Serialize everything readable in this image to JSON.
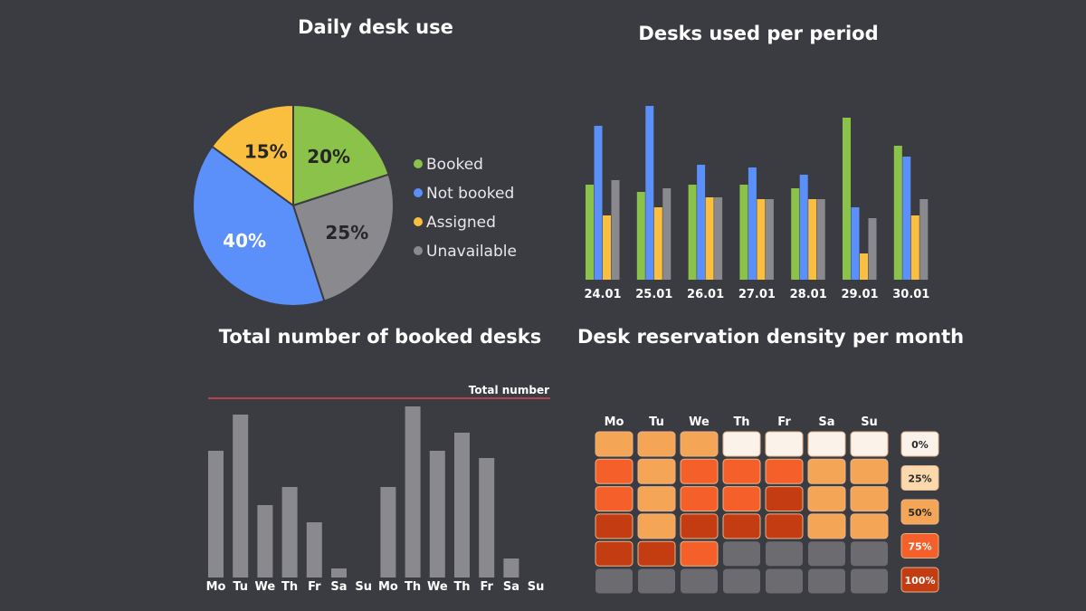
{
  "charts": {
    "pie": {
      "title": "Daily desk use",
      "slices": [
        {
          "name": "Booked",
          "value": 20,
          "label": "20%",
          "color": "#8bc34a"
        },
        {
          "name": "Unavailable",
          "value": 25,
          "label": "25%",
          "color": "#8a8a8e"
        },
        {
          "name": "Not booked",
          "value": 40,
          "label": "40%",
          "color": "#5b8ff9"
        },
        {
          "name": "Assigned",
          "value": 15,
          "label": "15%",
          "color": "#fbbf3f"
        }
      ],
      "legend": [
        {
          "name": "Booked",
          "color": "#8bc34a"
        },
        {
          "name": "Not booked",
          "color": "#5b8ff9"
        },
        {
          "name": "Assigned",
          "color": "#fbbf3f"
        },
        {
          "name": "Unavailable",
          "color": "#8a8a8e"
        }
      ]
    },
    "period": {
      "title": "Desks used per period"
    },
    "total": {
      "title": "Total number of booked desks",
      "reference_label": "Total number"
    },
    "density": {
      "title": "Desk reservation density per month"
    }
  },
  "chart_data": [
    {
      "type": "pie",
      "title": "Daily desk use",
      "categories": [
        "Booked",
        "Unavailable",
        "Not booked",
        "Assigned"
      ],
      "values": [
        20,
        25,
        40,
        15
      ],
      "legend_placement": "right"
    },
    {
      "type": "bar",
      "title": "Desks used per period",
      "categories": [
        "24.01",
        "25.01",
        "26.01",
        "27.01",
        "28.01",
        "29.01",
        "30.01"
      ],
      "series": [
        {
          "color": "#8bc34a",
          "values": [
            105,
            97,
            105,
            105,
            101,
            179,
            148
          ]
        },
        {
          "color": "#5b8ff9",
          "values": [
            170,
            192,
            127,
            124,
            116,
            80,
            136
          ]
        },
        {
          "color": "#fbbf3f",
          "values": [
            71,
            80,
            91,
            89,
            89,
            29,
            71
          ]
        },
        {
          "color": "#8a8a8e",
          "values": [
            110,
            101,
            91,
            89,
            89,
            68,
            89
          ]
        }
      ],
      "ylim": [
        0,
        200
      ],
      "grid": false
    },
    {
      "type": "bar",
      "title": "Total number of booked desks",
      "categories": [
        "Mo",
        "Tu",
        "We",
        "Th",
        "Fr",
        "Sa",
        "Su",
        "Mo",
        "Th",
        "We",
        "Th",
        "Fr",
        "Sa",
        "Su"
      ],
      "values": [
        140,
        180,
        80,
        100,
        61,
        10,
        0,
        100,
        189,
        140,
        160,
        132,
        21,
        0
      ],
      "reference_line": {
        "label": "Total number",
        "value": 198,
        "color": "#e0455a"
      },
      "ylim": [
        0,
        200
      ],
      "grid": false
    },
    {
      "type": "heatmap",
      "title": "Desk reservation density per month",
      "columns": [
        "Mo",
        "Tu",
        "We",
        "Th",
        "Fr",
        "Sa",
        "Su"
      ],
      "scale": [
        {
          "label": "0%",
          "color": "#fbf2e9"
        },
        {
          "label": "25%",
          "color": "#fcd9ad"
        },
        {
          "label": "50%",
          "color": "#f5a556"
        },
        {
          "label": "75%",
          "color": "#f5602a"
        },
        {
          "label": "100%",
          "color": "#c33c12"
        }
      ],
      "empty_color": "#6b6b70",
      "grid_values": [
        [
          2,
          2,
          2,
          0,
          0,
          0,
          0
        ],
        [
          3,
          2,
          3,
          3,
          3,
          2,
          2
        ],
        [
          3,
          2,
          3,
          3,
          4,
          2,
          2
        ],
        [
          4,
          2,
          4,
          4,
          4,
          2,
          2
        ],
        [
          4,
          4,
          3,
          -1,
          -1,
          -1,
          -1
        ],
        [
          -1,
          -1,
          -1,
          -1,
          -1,
          -1,
          -1
        ]
      ]
    }
  ]
}
